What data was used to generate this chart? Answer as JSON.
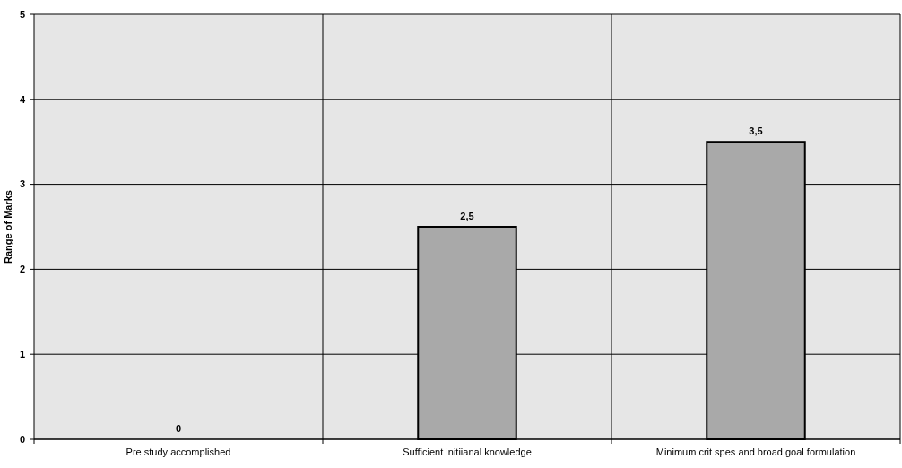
{
  "chart_data": {
    "type": "bar",
    "ylabel": "Range of Marks",
    "categories": [
      "Pre study accomplished",
      "Sufficient initiianal knowledge",
      "Minimum crit spes and broad goal formulation"
    ],
    "values": [
      0,
      2.5,
      3.5
    ],
    "color": "#a9a9a9",
    "value_labels": [
      "0",
      "2,5",
      "3,5"
    ],
    "ylim": [
      0,
      5
    ],
    "yticks": [
      0,
      1,
      2,
      3,
      4,
      5
    ],
    "grid": true
  }
}
